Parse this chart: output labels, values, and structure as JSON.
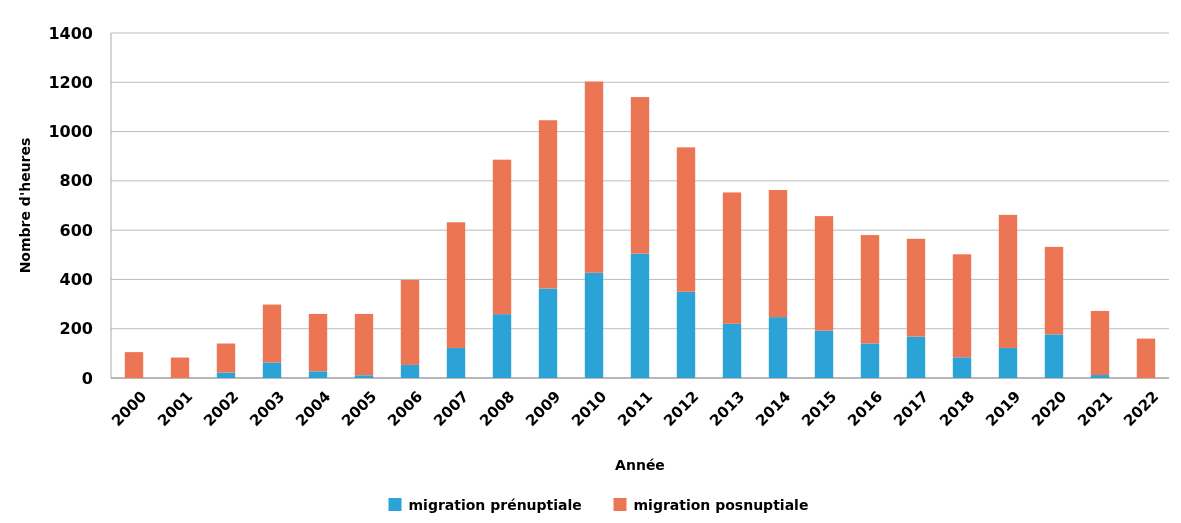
{
  "chart_data": {
    "type": "bar",
    "stacked": true,
    "xlabel": "Année",
    "ylabel": "Nombre d'heures",
    "categories": [
      "2000",
      "2001",
      "2002",
      "2003",
      "2004",
      "2005",
      "2006",
      "2007",
      "2008",
      "2009",
      "2010",
      "2011",
      "2012",
      "2013",
      "2014",
      "2015",
      "2016",
      "2017",
      "2018",
      "2019",
      "2020",
      "2021",
      "2022"
    ],
    "series": [
      {
        "name": "migration prénuptiale",
        "color": "#2ca3d6",
        "values": [
          0,
          0,
          22,
          63,
          27,
          11,
          53,
          122,
          259,
          363,
          427,
          505,
          350,
          220,
          247,
          192,
          140,
          168,
          84,
          122,
          177,
          12,
          0
        ]
      },
      {
        "name": "migration posnuptiale",
        "color": "#ec7654",
        "values": [
          105,
          83,
          118,
          235,
          233,
          249,
          345,
          510,
          627,
          683,
          776,
          635,
          586,
          533,
          516,
          465,
          440,
          397,
          418,
          540,
          355,
          260,
          160
        ]
      }
    ],
    "ylim": [
      0,
      1400
    ],
    "yticks": [
      0,
      200,
      400,
      600,
      800,
      1000,
      1200,
      1400
    ],
    "grid": "y",
    "legend": "bottom"
  }
}
